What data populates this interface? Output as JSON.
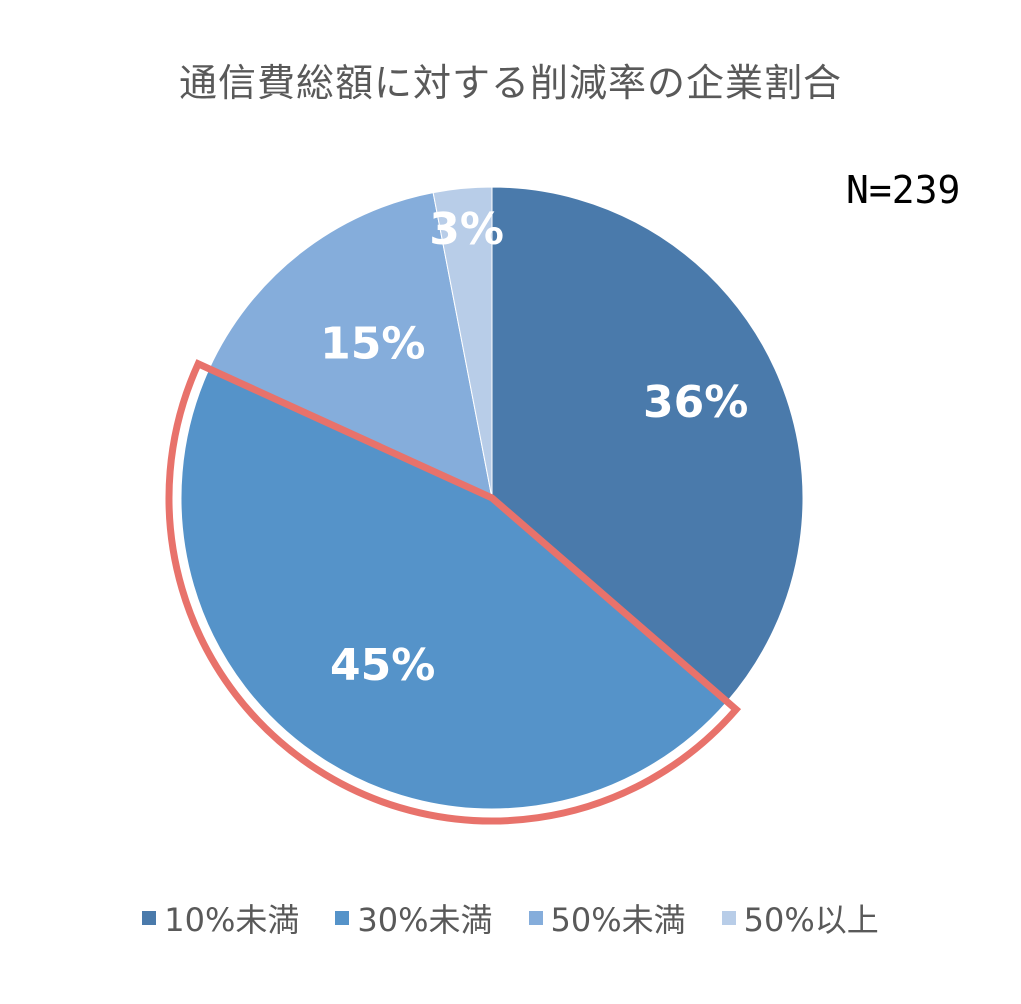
{
  "chart_data": {
    "type": "pie",
    "title": "通信費総額に対する削減率の企業割合",
    "annotation": "N=239",
    "categories": [
      "10%未満",
      "30%未満",
      "50%未満",
      "50%以上"
    ],
    "values": [
      36,
      45,
      15,
      3
    ],
    "labels": [
      "36%",
      "45%",
      "15%",
      "3%"
    ],
    "colors": [
      "#4a7aab",
      "#5593c9",
      "#85addb",
      "#b8cde8"
    ],
    "highlight": {
      "category": "30%未満",
      "color": "#e8726b"
    },
    "start_angle_deg": 0,
    "direction": "clockwise",
    "legend_position": "bottom"
  }
}
